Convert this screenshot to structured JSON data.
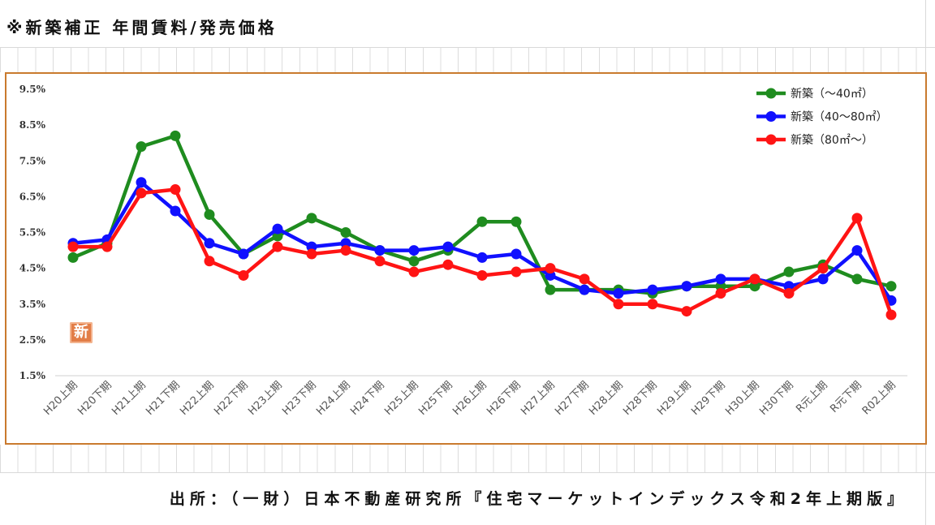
{
  "title": "※新築補正 年間賃料/発売価格",
  "source": "出所：（一財）日本不動産研究所『住宅マーケットインデックス令和2年上期版』",
  "badge": "新",
  "colors": {
    "frame": "#c97a2e",
    "sheet_grid": "#d9d9d9",
    "badge": "#e27d47"
  },
  "chart_data": {
    "type": "line",
    "categories": [
      "H20上期",
      "H20下期",
      "H21上期",
      "H21下期",
      "H22上期",
      "H22下期",
      "H23上期",
      "H23下期",
      "H24上期",
      "H24下期",
      "H25上期",
      "H25下期",
      "H26上期",
      "H26下期",
      "H27上期",
      "H27下期",
      "H28上期",
      "H28下期",
      "H29上期",
      "H29下期",
      "H30上期",
      "H30下期",
      "R元上期",
      "R元下期",
      "R02上期"
    ],
    "y_ticks": [
      "9.5%",
      "8.5%",
      "7.5%",
      "6.5%",
      "5.5%",
      "4.5%",
      "3.5%",
      "2.5%",
      "1.5%"
    ],
    "ylim": [
      1.5,
      9.5
    ],
    "grid": false,
    "legend_position": "top-right",
    "series": [
      {
        "name": "新築（～40㎡）",
        "color": "#1f8c1f",
        "values": [
          4.8,
          5.2,
          7.9,
          8.2,
          6.0,
          4.9,
          5.4,
          5.9,
          5.5,
          5.0,
          4.7,
          5.0,
          5.8,
          5.8,
          3.9,
          3.9,
          3.9,
          3.8,
          4.0,
          4.0,
          4.0,
          4.4,
          4.6,
          4.2,
          4.0
        ]
      },
      {
        "name": "新築（40～80㎡）",
        "color": "#1010ff",
        "values": [
          5.2,
          5.3,
          6.9,
          6.1,
          5.2,
          4.9,
          5.6,
          5.1,
          5.2,
          5.0,
          5.0,
          5.1,
          4.8,
          4.9,
          4.3,
          3.9,
          3.8,
          3.9,
          4.0,
          4.2,
          4.2,
          4.0,
          4.2,
          5.0,
          3.6
        ]
      },
      {
        "name": "新築（80㎡～）",
        "color": "#ff1414",
        "values": [
          5.1,
          5.1,
          6.6,
          6.7,
          4.7,
          4.3,
          5.1,
          4.9,
          5.0,
          4.7,
          4.4,
          4.6,
          4.3,
          4.4,
          4.5,
          4.2,
          3.5,
          3.5,
          3.3,
          3.8,
          4.2,
          3.8,
          4.5,
          5.9,
          3.2
        ]
      }
    ]
  }
}
